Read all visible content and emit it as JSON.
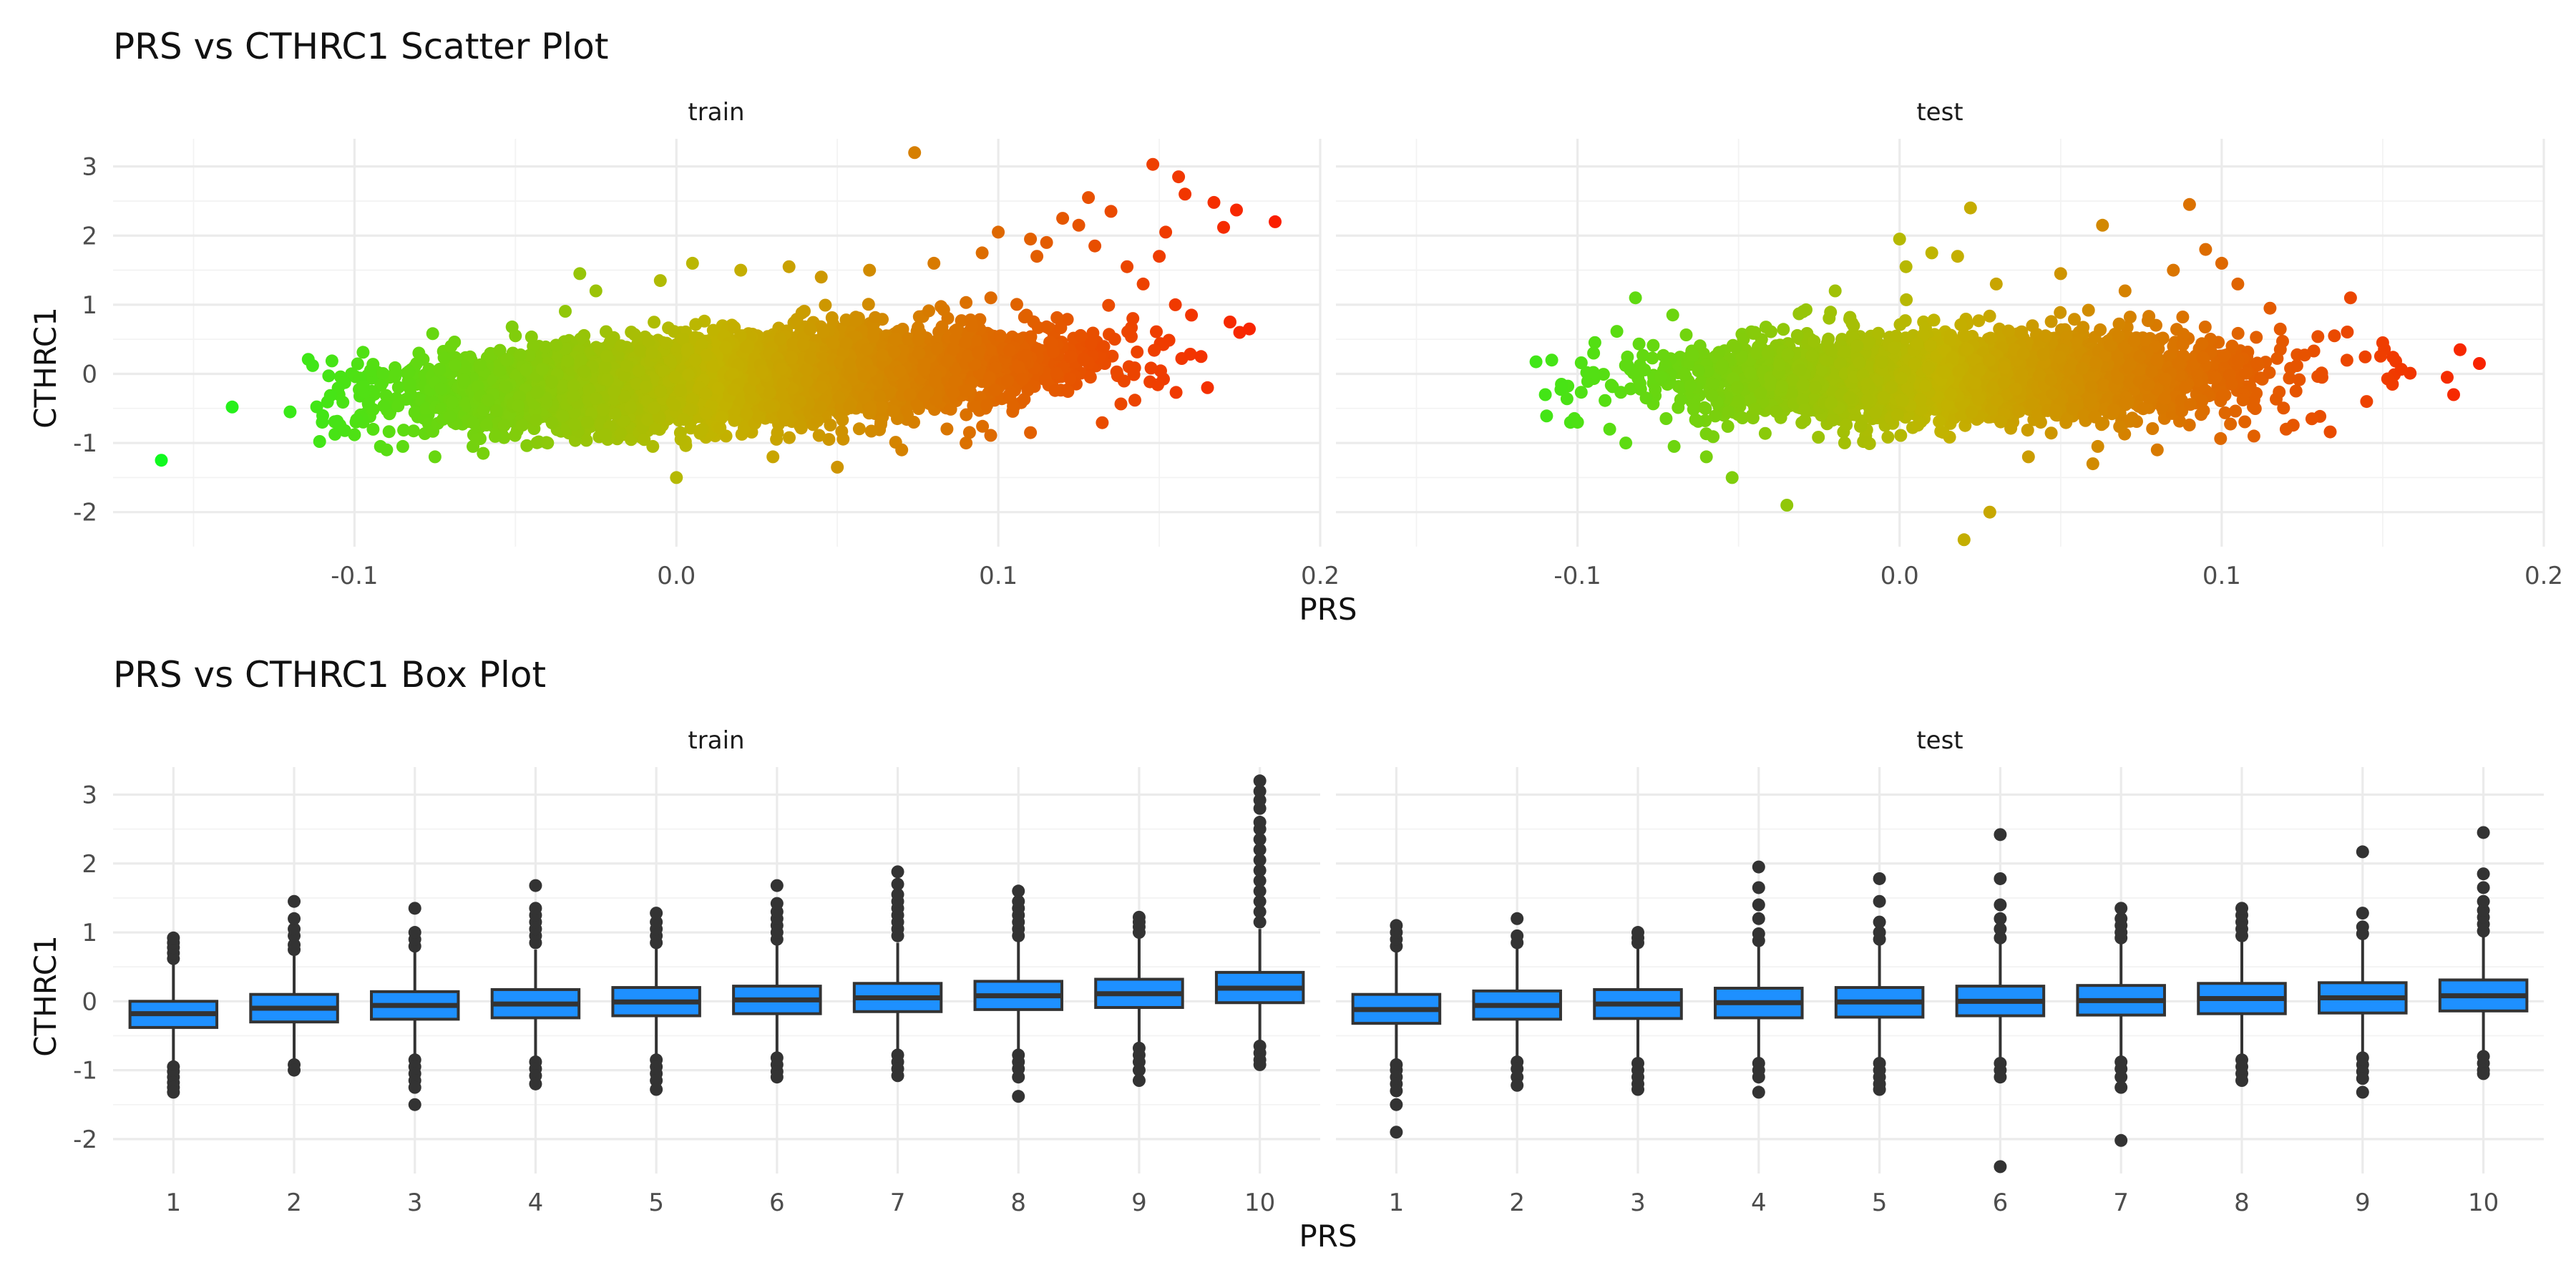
{
  "chart_data": [
    {
      "type": "scatter",
      "title": "PRS vs CTHRC1 Scatter Plot",
      "xlabel": "PRS",
      "ylabel": "CTHRC1",
      "facets": [
        "train",
        "test"
      ],
      "xlim": [
        -0.175,
        0.2
      ],
      "ylim": [
        -2.5,
        3.4
      ],
      "x_ticks": [
        -0.1,
        0.0,
        0.1,
        0.2
      ],
      "x_tick_labels": [
        "-0.1",
        "0.0",
        "0.1",
        "0.2"
      ],
      "y_ticks": [
        -2,
        -1,
        0,
        1,
        2,
        3
      ],
      "y_tick_labels": [
        "-2",
        "-1",
        "0",
        "1",
        "2",
        "3"
      ],
      "grid": true,
      "legend": "none",
      "color_low": "#00ff22",
      "color_mid": "#c2b400",
      "color_high": "#ff1200",
      "series": [
        {
          "facet": "train",
          "points": [
            [
              -0.16,
              -1.25
            ],
            [
              -0.138,
              -0.48
            ],
            [
              -0.12,
              -0.55
            ],
            [
              -0.113,
              0.12
            ],
            [
              -0.11,
              -0.7
            ],
            [
              -0.1,
              -0.88
            ],
            [
              -0.095,
              0.05
            ],
            [
              -0.09,
              -1.1
            ],
            [
              -0.085,
              -1.05
            ],
            [
              -0.08,
              0.3
            ],
            [
              -0.075,
              -1.2
            ],
            [
              -0.07,
              0.4
            ],
            [
              -0.06,
              -1.15
            ],
            [
              -0.05,
              0.55
            ],
            [
              -0.04,
              -1.0
            ],
            [
              -0.03,
              1.45
            ],
            [
              -0.025,
              1.2
            ],
            [
              -0.01,
              -0.95
            ],
            [
              0.0,
              -1.5
            ],
            [
              -0.005,
              1.35
            ],
            [
              0.005,
              1.6
            ],
            [
              0.02,
              1.5
            ],
            [
              0.03,
              -1.2
            ],
            [
              0.035,
              1.55
            ],
            [
              0.045,
              1.4
            ],
            [
              0.05,
              -1.35
            ],
            [
              0.06,
              1.5
            ],
            [
              0.07,
              -1.1
            ],
            [
              0.074,
              3.2
            ],
            [
              0.08,
              1.6
            ],
            [
              0.09,
              -1.0
            ],
            [
              0.095,
              1.75
            ],
            [
              0.1,
              2.05
            ],
            [
              0.11,
              -0.85
            ],
            [
              0.11,
              1.95
            ],
            [
              0.112,
              1.7
            ],
            [
              0.115,
              1.9
            ],
            [
              0.12,
              2.25
            ],
            [
              0.125,
              2.15
            ],
            [
              0.128,
              2.55
            ],
            [
              0.13,
              1.85
            ],
            [
              0.135,
              2.35
            ],
            [
              0.14,
              1.55
            ],
            [
              0.145,
              1.3
            ],
            [
              0.148,
              3.03
            ],
            [
              0.15,
              1.7
            ],
            [
              0.152,
              2.05
            ],
            [
              0.155,
              1.0
            ],
            [
              0.156,
              2.85
            ],
            [
              0.158,
              2.6
            ],
            [
              0.16,
              0.85
            ],
            [
              0.163,
              0.25
            ],
            [
              0.167,
              2.48
            ],
            [
              0.17,
              2.12
            ],
            [
              0.172,
              0.75
            ],
            [
              0.174,
              2.37
            ],
            [
              0.175,
              0.6
            ],
            [
              0.178,
              0.65
            ],
            [
              0.186,
              2.2
            ],
            [
              0.165,
              -0.2
            ]
          ]
        },
        {
          "facet": "test",
          "points": [
            [
              -0.11,
              -0.3
            ],
            [
              -0.108,
              0.2
            ],
            [
              -0.105,
              -0.15
            ],
            [
              -0.1,
              -0.7
            ],
            [
              -0.095,
              0.3
            ],
            [
              -0.09,
              -0.8
            ],
            [
              -0.085,
              -1.0
            ],
            [
              -0.082,
              1.1
            ],
            [
              -0.07,
              -1.05
            ],
            [
              -0.06,
              -1.2
            ],
            [
              -0.052,
              -1.5
            ],
            [
              -0.045,
              0.6
            ],
            [
              -0.035,
              -1.9
            ],
            [
              -0.03,
              0.9
            ],
            [
              -0.02,
              1.2
            ],
            [
              0.0,
              1.95
            ],
            [
              0.002,
              1.55
            ],
            [
              0.01,
              1.75
            ],
            [
              0.018,
              1.7
            ],
            [
              0.02,
              -2.4
            ],
            [
              0.022,
              2.4
            ],
            [
              0.028,
              -2.0
            ],
            [
              0.03,
              1.3
            ],
            [
              0.04,
              -1.2
            ],
            [
              0.05,
              1.45
            ],
            [
              0.06,
              -1.3
            ],
            [
              0.063,
              2.15
            ],
            [
              0.07,
              1.2
            ],
            [
              0.08,
              -1.1
            ],
            [
              0.085,
              1.5
            ],
            [
              0.09,
              2.45
            ],
            [
              0.095,
              1.8
            ],
            [
              0.1,
              1.6
            ],
            [
              0.105,
              1.3
            ],
            [
              0.11,
              -0.9
            ],
            [
              0.115,
              0.95
            ],
            [
              0.12,
              -0.8
            ],
            [
              0.128,
              -0.65
            ],
            [
              0.135,
              0.55
            ],
            [
              0.14,
              1.1
            ],
            [
              0.145,
              -0.4
            ],
            [
              0.15,
              0.45
            ],
            [
              0.153,
              -0.15
            ],
            [
              0.17,
              -0.05
            ],
            [
              0.172,
              -0.3
            ],
            [
              0.174,
              0.35
            ],
            [
              0.18,
              0.15
            ]
          ]
        }
      ]
    },
    {
      "type": "box",
      "title": "PRS vs CTHRC1 Box Plot",
      "xlabel": "PRS",
      "ylabel": "CTHRC1",
      "facets": [
        "train",
        "test"
      ],
      "categories": [
        "1",
        "2",
        "3",
        "4",
        "5",
        "6",
        "7",
        "8",
        "9",
        "10"
      ],
      "ylim": [
        -2.5,
        3.4
      ],
      "y_ticks": [
        -2,
        -1,
        0,
        1,
        2,
        3
      ],
      "y_tick_labels": [
        "-2",
        "-1",
        "0",
        "1",
        "2",
        "3"
      ],
      "grid": true,
      "legend": "none",
      "box_color": "#1e90ff",
      "series": [
        {
          "facet": "train",
          "boxes": [
            {
              "q1": -0.38,
              "median": -0.18,
              "q3": 0.0,
              "low": -0.9,
              "high": 0.55,
              "outliers": [
                0.62,
                0.7,
                0.78,
                0.85,
                0.92,
                -0.95,
                -1.02,
                -1.1,
                -1.18,
                -1.25,
                -1.32
              ]
            },
            {
              "q1": -0.3,
              "median": -0.1,
              "q3": 0.1,
              "low": -0.88,
              "high": 0.68,
              "outliers": [
                0.75,
                0.82,
                0.95,
                1.05,
                1.2,
                1.45,
                -0.92,
                -1.0
              ]
            },
            {
              "q1": -0.26,
              "median": -0.06,
              "q3": 0.14,
              "low": -0.8,
              "high": 0.72,
              "outliers": [
                0.8,
                0.9,
                1.0,
                1.35,
                -0.85,
                -0.95,
                -1.05,
                -1.15,
                -1.25,
                -1.5
              ]
            },
            {
              "q1": -0.24,
              "median": -0.04,
              "q3": 0.17,
              "low": -0.8,
              "high": 0.75,
              "outliers": [
                0.85,
                0.95,
                1.05,
                1.15,
                1.25,
                1.35,
                1.68,
                -0.88,
                -0.98,
                -1.08,
                -1.2
              ]
            },
            {
              "q1": -0.21,
              "median": -0.01,
              "q3": 0.2,
              "low": -0.78,
              "high": 0.78,
              "outliers": [
                0.85,
                0.95,
                1.05,
                1.15,
                1.28,
                -0.85,
                -0.95,
                -1.05,
                -1.15,
                -1.28
              ]
            },
            {
              "q1": -0.18,
              "median": 0.02,
              "q3": 0.22,
              "low": -0.75,
              "high": 0.82,
              "outliers": [
                0.9,
                1.0,
                1.1,
                1.2,
                1.3,
                1.42,
                1.68,
                -0.82,
                -0.92,
                -1.02,
                -1.1
              ]
            },
            {
              "q1": -0.15,
              "median": 0.05,
              "q3": 0.26,
              "low": -0.72,
              "high": 0.85,
              "outliers": [
                0.95,
                1.05,
                1.15,
                1.25,
                1.35,
                1.45,
                1.55,
                1.7,
                1.88,
                -0.78,
                -0.88,
                -0.98,
                -1.08
              ]
            },
            {
              "q1": -0.12,
              "median": 0.08,
              "q3": 0.29,
              "low": -0.7,
              "high": 0.88,
              "outliers": [
                0.95,
                1.05,
                1.15,
                1.25,
                1.35,
                1.45,
                1.6,
                -0.78,
                -0.88,
                -0.98,
                -1.1,
                -1.38
              ]
            },
            {
              "q1": -0.09,
              "median": 0.11,
              "q3": 0.32,
              "low": -0.62,
              "high": 0.92,
              "outliers": [
                1.0,
                1.08,
                1.15,
                1.22,
                -0.68,
                -0.78,
                -0.88,
                -1.0,
                -1.15
              ]
            },
            {
              "q1": -0.02,
              "median": 0.19,
              "q3": 0.42,
              "low": -0.58,
              "high": 1.05,
              "outliers": [
                1.15,
                1.3,
                1.45,
                1.6,
                1.75,
                1.9,
                2.05,
                2.2,
                2.35,
                2.5,
                2.6,
                2.8,
                2.92,
                3.05,
                3.2,
                -0.65,
                -0.75,
                -0.85,
                -0.92
              ]
            }
          ]
        },
        {
          "facet": "test",
          "boxes": [
            {
              "q1": -0.32,
              "median": -0.12,
              "q3": 0.1,
              "low": -0.85,
              "high": 0.72,
              "outliers": [
                0.8,
                0.9,
                1.0,
                1.1,
                -0.92,
                -1.0,
                -1.1,
                -1.2,
                -1.3,
                -1.5,
                -1.9
              ]
            },
            {
              "q1": -0.26,
              "median": -0.06,
              "q3": 0.15,
              "low": -0.82,
              "high": 0.78,
              "outliers": [
                0.85,
                0.95,
                1.2,
                -0.88,
                -0.98,
                -1.1,
                -1.22
              ]
            },
            {
              "q1": -0.25,
              "median": -0.04,
              "q3": 0.17,
              "low": -0.82,
              "high": 0.78,
              "outliers": [
                0.85,
                0.92,
                1.0,
                -0.9,
                -1.0,
                -1.1,
                -1.2,
                -1.28
              ]
            },
            {
              "q1": -0.24,
              "median": -0.02,
              "q3": 0.19,
              "low": -0.82,
              "high": 0.8,
              "outliers": [
                0.88,
                0.98,
                1.2,
                1.4,
                1.65,
                1.95,
                -0.9,
                -1.0,
                -1.1,
                -1.32
              ]
            },
            {
              "q1": -0.23,
              "median": -0.01,
              "q3": 0.2,
              "low": -0.82,
              "high": 0.82,
              "outliers": [
                0.9,
                1.0,
                1.15,
                1.45,
                1.78,
                -0.9,
                -1.0,
                -1.1,
                -1.2,
                -1.28
              ]
            },
            {
              "q1": -0.21,
              "median": 0.0,
              "q3": 0.22,
              "low": -0.82,
              "high": 0.84,
              "outliers": [
                0.92,
                1.05,
                1.2,
                1.4,
                1.78,
                2.42,
                -0.9,
                -1.0,
                -1.1,
                -2.4
              ]
            },
            {
              "q1": -0.2,
              "median": 0.01,
              "q3": 0.23,
              "low": -0.8,
              "high": 0.84,
              "outliers": [
                0.92,
                1.0,
                1.1,
                1.2,
                1.35,
                -0.88,
                -0.98,
                -1.1,
                -1.25,
                -2.02
              ]
            },
            {
              "q1": -0.18,
              "median": 0.04,
              "q3": 0.26,
              "low": -0.78,
              "high": 0.88,
              "outliers": [
                0.95,
                1.05,
                1.15,
                1.25,
                1.35,
                -0.85,
                -0.95,
                -1.05,
                -1.15
              ]
            },
            {
              "q1": -0.17,
              "median": 0.05,
              "q3": 0.27,
              "low": -0.75,
              "high": 0.9,
              "outliers": [
                0.98,
                1.08,
                1.28,
                2.17,
                -0.82,
                -0.92,
                -1.02,
                -1.12,
                -1.32
              ]
            },
            {
              "q1": -0.14,
              "median": 0.08,
              "q3": 0.31,
              "low": -0.72,
              "high": 0.95,
              "outliers": [
                1.02,
                1.12,
                1.22,
                1.32,
                1.45,
                1.65,
                1.85,
                2.45,
                -0.8,
                -0.9,
                -1.0,
                -1.05
              ]
            }
          ]
        }
      ]
    }
  ]
}
